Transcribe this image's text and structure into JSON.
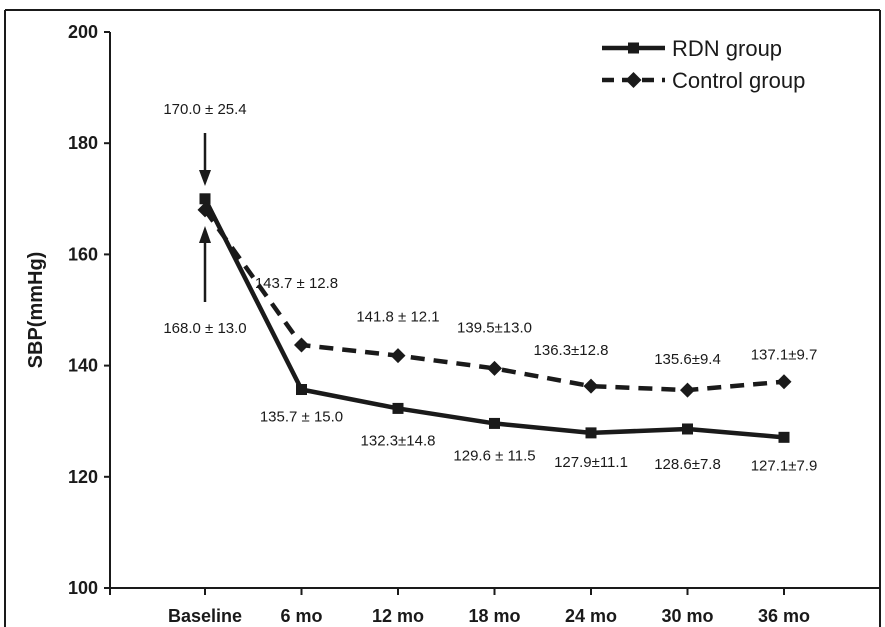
{
  "chart_data": {
    "type": "line",
    "title": "",
    "xlabel": "",
    "ylabel": "SBP(mmHg)",
    "ylim": [
      100,
      200
    ],
    "yticks": [
      100,
      120,
      140,
      160,
      180,
      200
    ],
    "categories": [
      "Baseline",
      "6 mo",
      "12 mo",
      "18 mo",
      "24 mo",
      "30 mo",
      "36 mo"
    ],
    "grid": false,
    "legend_position": "top-right",
    "series": [
      {
        "name": "RDN group",
        "style": "solid",
        "marker": "square",
        "color": "#1a1a1a",
        "values": [
          170.0,
          135.7,
          132.3,
          129.6,
          127.9,
          128.6,
          127.1
        ],
        "labels": [
          "170.0 ± 25.4",
          "135.7 ± 15.0",
          "132.3±14.8",
          "129.6 ± 11.5",
          "127.9±11.1",
          "128.6±7.8",
          "127.1±7.9"
        ]
      },
      {
        "name": "Control group",
        "style": "dashed",
        "marker": "diamond",
        "color": "#1a1a1a",
        "values": [
          168.0,
          143.7,
          141.8,
          139.5,
          136.3,
          135.6,
          137.1
        ],
        "labels": [
          "168.0 ± 13.0",
          "143.7 ± 12.8",
          "141.8 ± 12.1",
          "139.5±13.0",
          "136.3±12.8",
          "135.6±9.4",
          "137.1±9.7"
        ]
      }
    ]
  }
}
